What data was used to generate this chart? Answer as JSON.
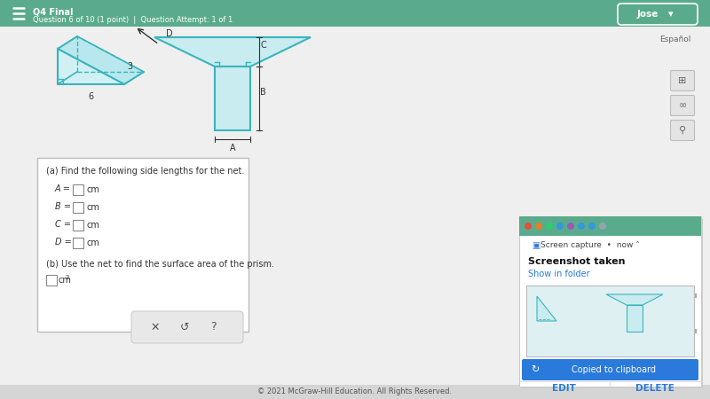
{
  "bg_color": "#efefef",
  "header_color": "#5aab8e",
  "header_text": "Q4 Final",
  "subheader_text": "Question 6 of 10 (1 point)  |  Question Attempt: 1 of 1",
  "user_name": "Jose",
  "espanol_text": "Español",
  "teal": "#3ab4bc",
  "prism_label_6": "6",
  "prism_label_3": "3",
  "net_label_A": "A",
  "net_label_B": "B",
  "net_label_C": "C",
  "net_label_D": "D",
  "question_a_text": "(a) Find the following side lengths for the net.",
  "question_b_text": "(b) Use the net to find the surface area of the prism.",
  "label_A": "A = ",
  "label_B": "B = ",
  "label_C": "C = ",
  "label_D": "D = ",
  "unit_cm": "cm",
  "unit_cm2": "cm",
  "footer_text": "© 2021 McGraw-Hill Education. All Rights Reserved.",
  "screen_capture_text": "Screen capture  •  now ˄",
  "screenshot_taken_text": "Screenshot taken",
  "show_in_folder_text": "Show in folder",
  "copied_text": "Copied to clipboard",
  "edit_text": "EDIT",
  "delete_text": "DELETE"
}
